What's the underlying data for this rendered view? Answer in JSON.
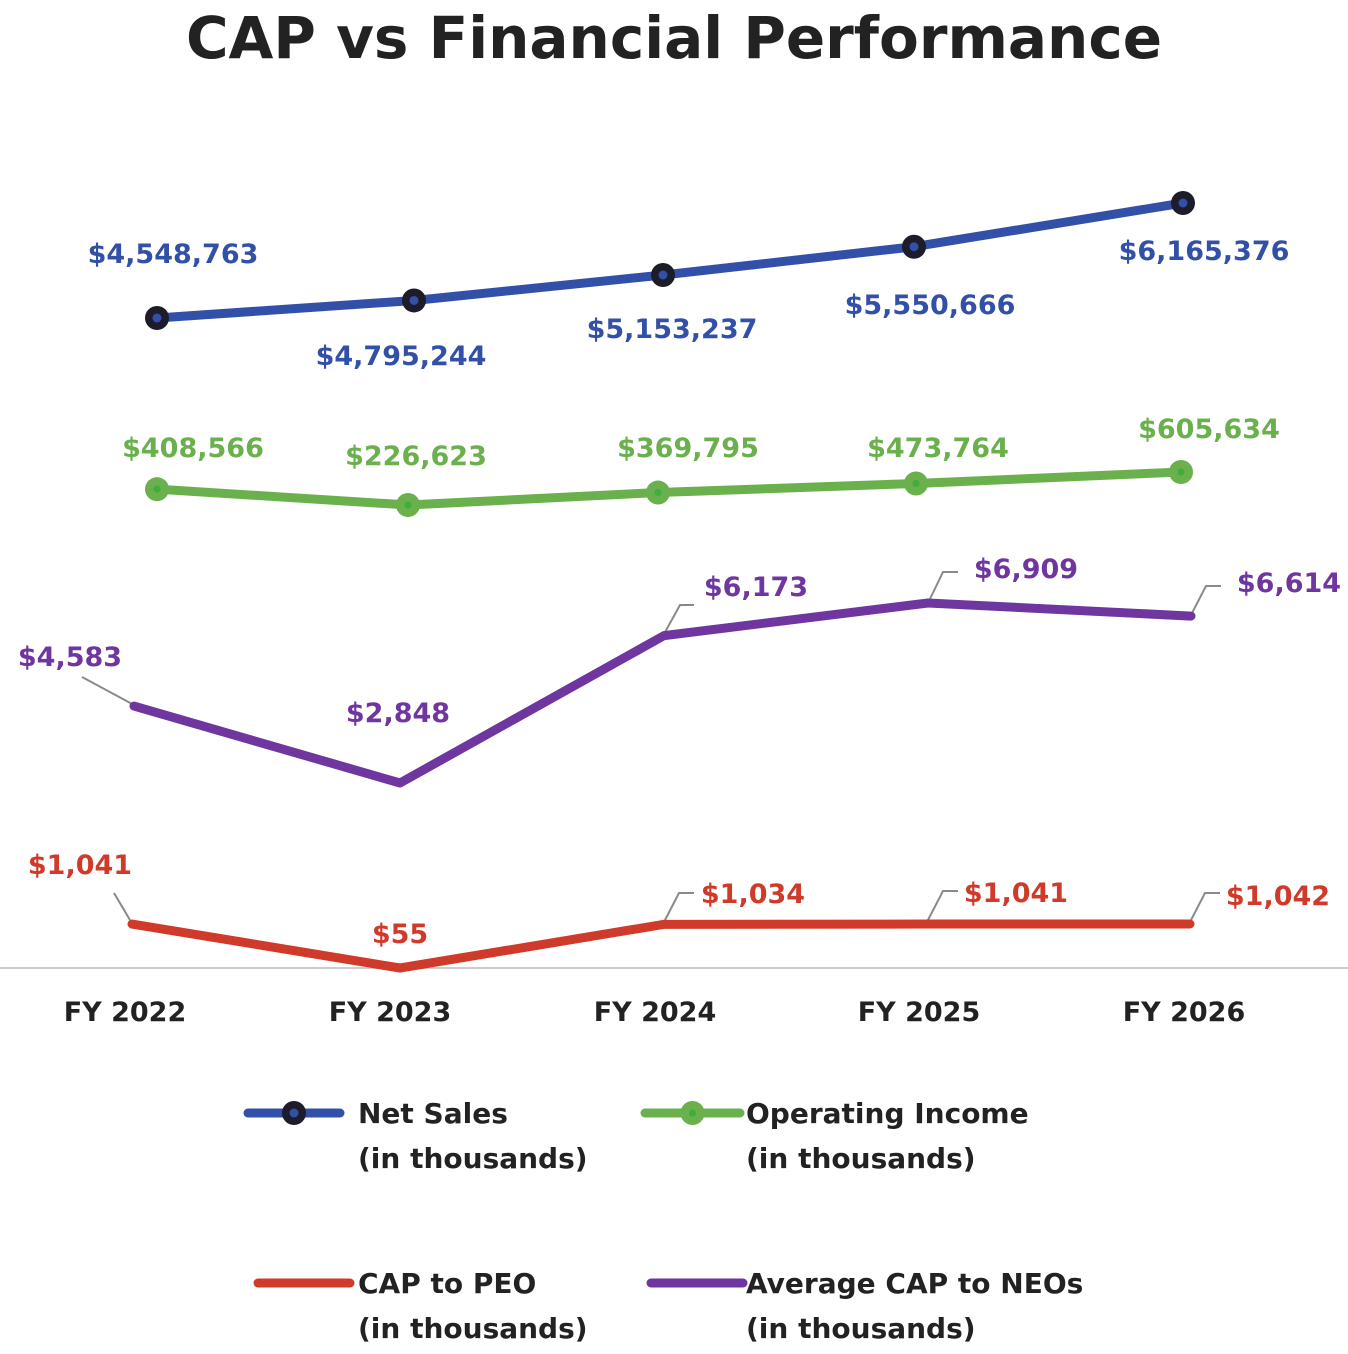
{
  "chart_data": {
    "type": "line",
    "title": "CAP vs Financial Performance",
    "categories": [
      "FY 2022",
      "FY 2023",
      "FY 2024",
      "FY 2025",
      "FY 2026"
    ],
    "series": [
      {
        "key": "net_sales",
        "name": "Net Sales",
        "name_sub": "(in thousands)",
        "color": "#3350a8",
        "marker": "black-circle",
        "values": [
          4548763,
          4795244,
          5153237,
          5550666,
          6165376
        ],
        "labels": [
          "$4,548,763",
          "$4,795,244",
          "$5,153,237",
          "$5,550,666",
          "$6,165,376"
        ]
      },
      {
        "key": "operating_income",
        "name": "Operating Income",
        "name_sub": "(in thousands)",
        "color": "#6ab04c",
        "marker": "green-circle",
        "values": [
          408566,
          226623,
          369795,
          473764,
          605634
        ],
        "labels": [
          "$408,566",
          "$226,623",
          "$369,795",
          "$473,764",
          "$605,634"
        ]
      },
      {
        "key": "avg_cap_neos",
        "name": "Average CAP to NEOs",
        "name_sub": "(in thousands)",
        "color": "#6f36a0",
        "marker": "none",
        "values": [
          4583,
          2848,
          6173,
          6909,
          6614
        ],
        "labels": [
          "$4,583",
          "$2,848",
          "$6,173",
          "$6,909",
          "$6,614"
        ]
      },
      {
        "key": "cap_peo",
        "name": "CAP to PEO",
        "name_sub": "(in thousands)",
        "color": "#d03a2a",
        "marker": "none",
        "values": [
          1041,
          55,
          1034,
          1041,
          1042
        ],
        "labels": [
          "$1,041",
          "$55",
          "$1,034",
          "$1,041",
          "$1,042"
        ]
      }
    ],
    "legend_placement": "bottom",
    "grid": false
  }
}
